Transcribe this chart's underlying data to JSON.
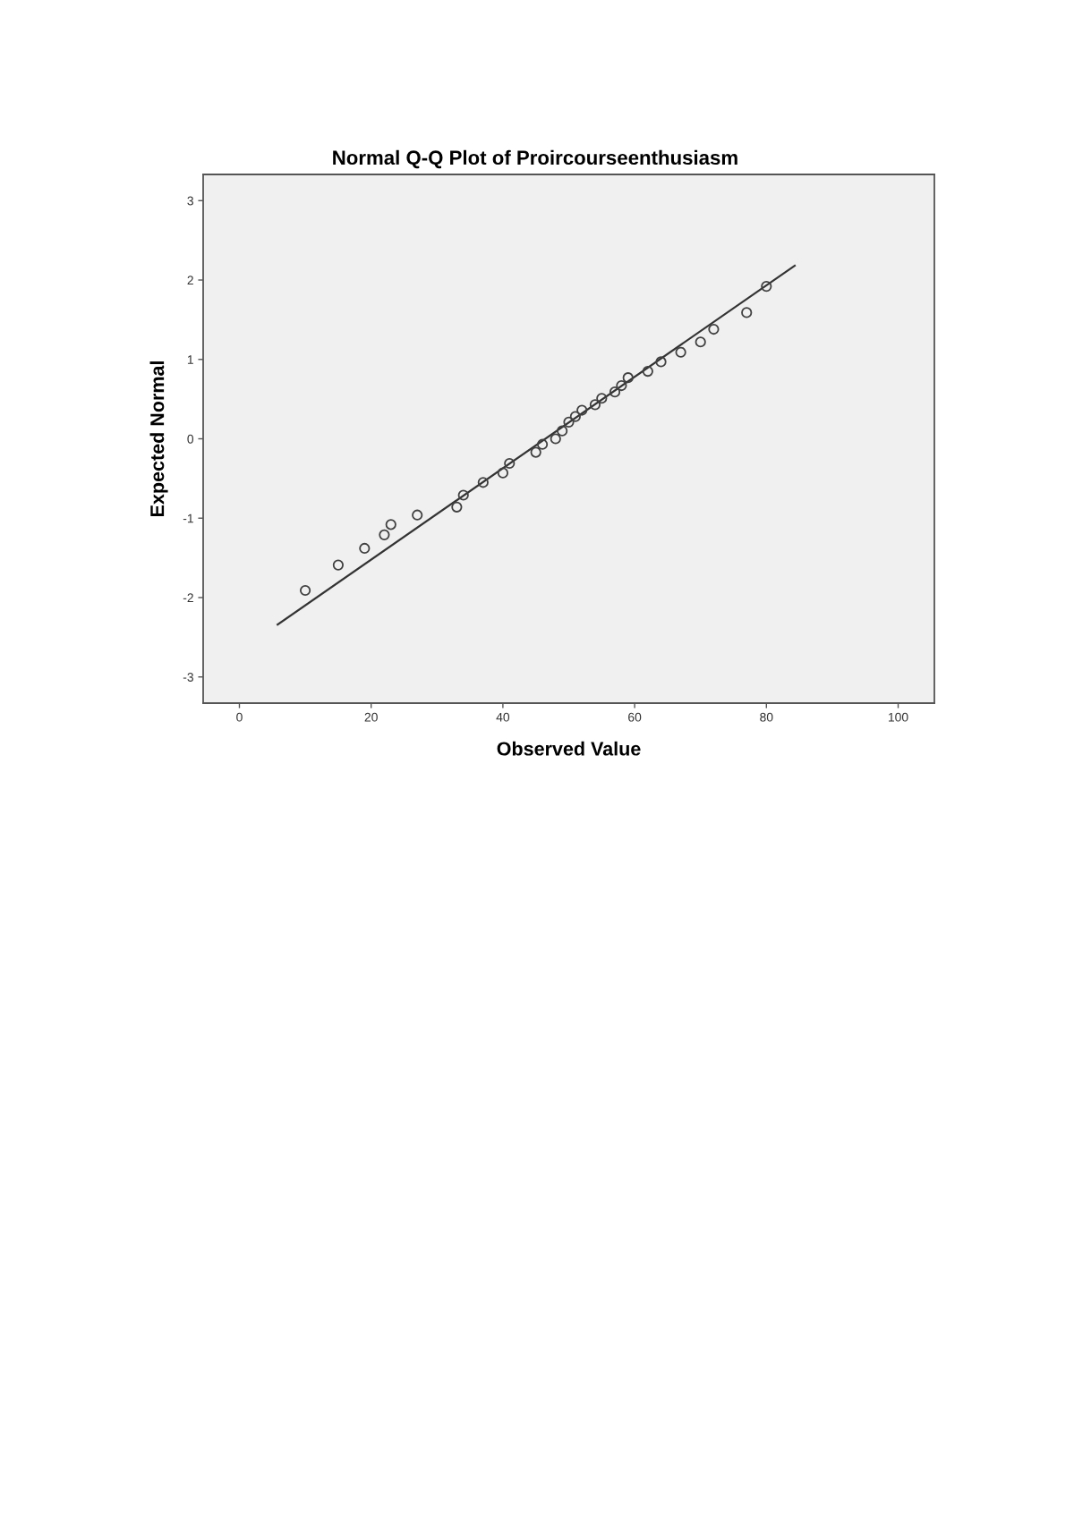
{
  "chart_data": {
    "type": "scatter",
    "title": "Normal Q-Q Plot of Proircourseenthusiasm",
    "xlabel": "Observed Value",
    "ylabel": "Expected Normal",
    "xlim": [
      -5.5,
      105.5
    ],
    "ylim": [
      -3.33,
      3.33
    ],
    "xticks": [
      0,
      20,
      40,
      60,
      80,
      100
    ],
    "yticks": [
      -3,
      -2,
      -1,
      0,
      1,
      2,
      3
    ],
    "series": [
      {
        "color": "#404040",
        "marker": "circle",
        "x": [
          10,
          15,
          19,
          22,
          23,
          27,
          33,
          34,
          37,
          40,
          41,
          45,
          46,
          48,
          49,
          50,
          51,
          52,
          54,
          55,
          57,
          58,
          59,
          62,
          64,
          67,
          70,
          72,
          77,
          80
        ],
        "values": [
          -1.91,
          -1.59,
          -1.38,
          -1.21,
          -1.08,
          -0.96,
          -0.86,
          -0.71,
          -0.55,
          -0.43,
          -0.31,
          -0.17,
          -0.07,
          0.0,
          0.1,
          0.21,
          0.28,
          0.36,
          0.43,
          0.51,
          0.59,
          0.67,
          0.77,
          0.85,
          0.97,
          1.09,
          1.22,
          1.38,
          1.59,
          1.92
        ]
      },
      {
        "type": "line",
        "color": "#333333",
        "x": [
          5.8,
          84.3
        ],
        "values": [
          -2.34,
          2.18
        ]
      }
    ]
  }
}
